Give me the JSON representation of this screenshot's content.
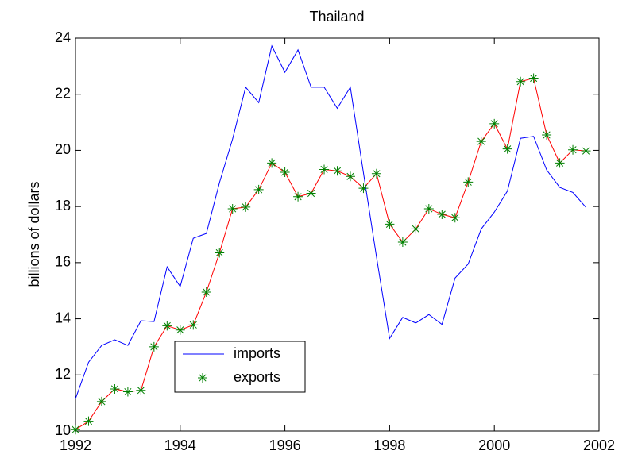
{
  "chart_data": {
    "type": "line",
    "title": "Thailand",
    "ylabel": "billions of dollars",
    "x": [
      1992,
      1992.25,
      1992.5,
      1992.75,
      1993,
      1993.25,
      1993.5,
      1993.75,
      1994,
      1994.25,
      1994.5,
      1994.75,
      1995,
      1995.25,
      1995.5,
      1995.75,
      1996,
      1996.25,
      1996.5,
      1996.75,
      1997,
      1997.25,
      1997.5,
      1997.75,
      1998,
      1998.25,
      1998.5,
      1998.75,
      1999,
      1999.25,
      1999.5,
      1999.75,
      2000,
      2000.25,
      2000.5,
      2000.75,
      2001,
      2001.25,
      2001.5,
      2001.75
    ],
    "series": [
      {
        "name": "imports",
        "color": "#0000ff",
        "values": [
          11.15,
          12.45,
          13.05,
          13.25,
          13.05,
          13.93,
          13.9,
          15.85,
          15.15,
          16.87,
          17.04,
          18.85,
          20.4,
          22.25,
          21.7,
          23.72,
          22.78,
          23.58,
          22.25,
          22.25,
          21.5,
          22.25,
          19.2,
          16.2,
          13.3,
          14.05,
          13.85,
          14.15,
          13.8,
          15.45,
          15.95,
          17.2,
          17.8,
          18.55,
          20.43,
          20.5,
          19.3,
          18.68,
          18.5,
          17.97
        ]
      },
      {
        "name": "exports",
        "color": "#008000",
        "line_color": "#ff0000",
        "marker": "*",
        "values": [
          10.05,
          10.35,
          11.05,
          11.5,
          11.4,
          11.45,
          13.0,
          13.75,
          13.6,
          13.78,
          14.95,
          16.35,
          17.92,
          17.98,
          18.6,
          19.55,
          19.22,
          18.35,
          18.47,
          19.32,
          19.27,
          19.07,
          18.65,
          19.17,
          17.37,
          16.73,
          17.2,
          17.92,
          17.72,
          17.6,
          18.87,
          20.32,
          20.95,
          20.05,
          22.45,
          22.57,
          20.55,
          19.55,
          20.02,
          19.98
        ]
      }
    ],
    "xlim": [
      1992,
      2002
    ],
    "xticks": [
      1992,
      1994,
      1996,
      1998,
      2000,
      2002
    ],
    "ylim": [
      10,
      24
    ],
    "yticks": [
      10,
      12,
      14,
      16,
      18,
      20,
      22,
      24
    ],
    "legend": "lower left"
  }
}
